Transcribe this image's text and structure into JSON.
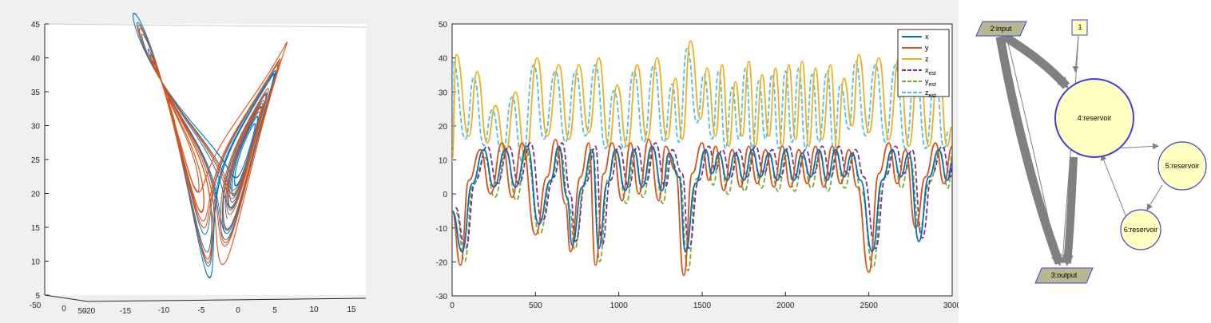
{
  "colors": {
    "x": "#0072BD",
    "y": "#D95319",
    "z": "#EDB120",
    "x_est": "#7E2F8E",
    "y_est": "#77AC30",
    "z_est": "#4DBEEE",
    "axis": "#262626",
    "node_fill": "#ffffc0",
    "node_stroke": "#4040e0",
    "io_fill": "#b8b890",
    "edge": "#808080"
  },
  "chart_data": [
    {
      "type": "line",
      "description_type": "3d-line",
      "series": [
        {
          "name": "",
          "color_key": "x"
        },
        {
          "name": "",
          "color_key": "y"
        }
      ],
      "yticks": [
        5,
        10,
        15,
        20,
        25,
        30,
        35,
        40,
        45
      ],
      "xticks": [
        "-50",
        "0",
        "50",
        "-20",
        "-15",
        "-10",
        "-5",
        "0",
        "5",
        "10",
        "15"
      ],
      "ylim": [
        5,
        45
      ],
      "grid": false
    },
    {
      "type": "line",
      "xlim": [
        0,
        3000
      ],
      "ylim": [
        -30,
        50
      ],
      "xticks": [
        0,
        500,
        1000,
        1500,
        2000,
        2500,
        3000
      ],
      "yticks": [
        -30,
        -20,
        -10,
        0,
        10,
        20,
        30,
        40,
        50
      ],
      "legend_position": "top-right",
      "series": [
        {
          "name": "x",
          "key": "x",
          "style": "solid"
        },
        {
          "name": "y",
          "key": "y",
          "style": "solid"
        },
        {
          "name": "z",
          "key": "z",
          "style": "solid"
        },
        {
          "name": "x",
          "sub": "est",
          "key": "x_est",
          "style": "dashed"
        },
        {
          "name": "y",
          "sub": "est",
          "key": "y_est",
          "style": "dashed"
        },
        {
          "name": "z",
          "sub": "est",
          "key": "z_est",
          "style": "dashed"
        }
      ],
      "z_peaks": [
        [
          0,
          10
        ],
        [
          25,
          41
        ],
        [
          100,
          17
        ],
        [
          150,
          36
        ],
        [
          210,
          15
        ],
        [
          260,
          26
        ],
        [
          320,
          12
        ],
        [
          380,
          30
        ],
        [
          440,
          10
        ],
        [
          510,
          40
        ],
        [
          570,
          17
        ],
        [
          640,
          38
        ],
        [
          700,
          16
        ],
        [
          760,
          38
        ],
        [
          820,
          18
        ],
        [
          880,
          40
        ],
        [
          940,
          14
        ],
        [
          990,
          32
        ],
        [
          1050,
          14
        ],
        [
          1110,
          38
        ],
        [
          1170,
          16
        ],
        [
          1230,
          40
        ],
        [
          1290,
          16
        ],
        [
          1340,
          34
        ],
        [
          1380,
          16
        ],
        [
          1430,
          45
        ],
        [
          1490,
          22
        ],
        [
          1530,
          37
        ],
        [
          1580,
          17
        ],
        [
          1620,
          38
        ],
        [
          1660,
          14
        ],
        [
          1700,
          33
        ],
        [
          1740,
          17
        ],
        [
          1780,
          39
        ],
        [
          1820,
          14
        ],
        [
          1860,
          35
        ],
        [
          1900,
          17
        ],
        [
          1940,
          37
        ],
        [
          1980,
          14
        ],
        [
          2020,
          38
        ],
        [
          2060,
          16
        ],
        [
          2100,
          39
        ],
        [
          2140,
          14
        ],
        [
          2180,
          37
        ],
        [
          2220,
          16
        ],
        [
          2270,
          38
        ],
        [
          2310,
          13
        ],
        [
          2350,
          34
        ],
        [
          2400,
          20
        ],
        [
          2440,
          41
        ],
        [
          2500,
          18
        ],
        [
          2560,
          40
        ],
        [
          2620,
          16
        ],
        [
          2680,
          40
        ],
        [
          2740,
          14
        ],
        [
          2800,
          40
        ],
        [
          2860,
          14
        ],
        [
          2920,
          38
        ],
        [
          2970,
          14
        ],
        [
          3000,
          20
        ]
      ],
      "x_peaks": [
        [
          0,
          -5
        ],
        [
          60,
          -17
        ],
        [
          120,
          3
        ],
        [
          190,
          13
        ],
        [
          250,
          2
        ],
        [
          320,
          13
        ],
        [
          380,
          2
        ],
        [
          450,
          14
        ],
        [
          520,
          -9
        ],
        [
          590,
          4
        ],
        [
          640,
          14
        ],
        [
          690,
          -1
        ],
        [
          720,
          -15
        ],
        [
          780,
          2
        ],
        [
          840,
          13
        ],
        [
          880,
          -16
        ],
        [
          930,
          3
        ],
        [
          980,
          13
        ],
        [
          1040,
          1
        ],
        [
          1090,
          13
        ],
        [
          1140,
          2
        ],
        [
          1200,
          14
        ],
        [
          1260,
          1
        ],
        [
          1300,
          12
        ],
        [
          1360,
          5
        ],
        [
          1400,
          -17
        ],
        [
          1460,
          3
        ],
        [
          1520,
          13
        ],
        [
          1560,
          6
        ],
        [
          1600,
          12
        ],
        [
          1650,
          4
        ],
        [
          1700,
          12
        ],
        [
          1750,
          4
        ],
        [
          1800,
          13
        ],
        [
          1850,
          5
        ],
        [
          1900,
          12
        ],
        [
          1950,
          4
        ],
        [
          2000,
          13
        ],
        [
          2050,
          4
        ],
        [
          2100,
          12
        ],
        [
          2150,
          5
        ],
        [
          2200,
          13
        ],
        [
          2250,
          4
        ],
        [
          2300,
          13
        ],
        [
          2350,
          5
        ],
        [
          2400,
          12
        ],
        [
          2450,
          4
        ],
        [
          2520,
          -17
        ],
        [
          2580,
          4
        ],
        [
          2640,
          13
        ],
        [
          2690,
          5
        ],
        [
          2740,
          12
        ],
        [
          2800,
          -14
        ],
        [
          2860,
          5
        ],
        [
          2920,
          13
        ],
        [
          2970,
          4
        ],
        [
          3000,
          9
        ]
      ],
      "y_peaks": [
        [
          0,
          -5
        ],
        [
          50,
          -21
        ],
        [
          100,
          4
        ],
        [
          170,
          13
        ],
        [
          230,
          0
        ],
        [
          300,
          15
        ],
        [
          360,
          -1
        ],
        [
          420,
          15
        ],
        [
          500,
          -12
        ],
        [
          570,
          5
        ],
        [
          620,
          16
        ],
        [
          680,
          -3
        ],
        [
          710,
          -17
        ],
        [
          770,
          5
        ],
        [
          820,
          15
        ],
        [
          860,
          -21
        ],
        [
          910,
          6
        ],
        [
          960,
          15
        ],
        [
          1020,
          -2
        ],
        [
          1070,
          15
        ],
        [
          1120,
          0
        ],
        [
          1180,
          16
        ],
        [
          1240,
          -2
        ],
        [
          1280,
          14
        ],
        [
          1340,
          7
        ],
        [
          1390,
          -24
        ],
        [
          1440,
          6
        ],
        [
          1500,
          15
        ],
        [
          1540,
          4
        ],
        [
          1580,
          14
        ],
        [
          1630,
          1
        ],
        [
          1680,
          13
        ],
        [
          1730,
          2
        ],
        [
          1780,
          14
        ],
        [
          1830,
          3
        ],
        [
          1880,
          13
        ],
        [
          1930,
          2
        ],
        [
          1980,
          14
        ],
        [
          2030,
          2
        ],
        [
          2080,
          13
        ],
        [
          2130,
          3
        ],
        [
          2180,
          14
        ],
        [
          2230,
          2
        ],
        [
          2280,
          14
        ],
        [
          2330,
          3
        ],
        [
          2380,
          13
        ],
        [
          2430,
          2
        ],
        [
          2500,
          -23
        ],
        [
          2560,
          6
        ],
        [
          2620,
          15
        ],
        [
          2670,
          3
        ],
        [
          2720,
          13
        ],
        [
          2780,
          -10
        ],
        [
          2840,
          5
        ],
        [
          2900,
          15
        ],
        [
          2950,
          3
        ],
        [
          3000,
          14
        ]
      ]
    }
  ],
  "graph": {
    "nodes": [
      {
        "id": "input",
        "label": "2:input",
        "shape": "parallelogram"
      },
      {
        "id": "one",
        "label": "1",
        "shape": "box"
      },
      {
        "id": "r4",
        "label": "4:reservoir",
        "shape": "circle"
      },
      {
        "id": "r5",
        "label": "5:reservoir",
        "shape": "circle"
      },
      {
        "id": "r6",
        "label": "6:reservoir",
        "shape": "circle"
      },
      {
        "id": "output",
        "label": "3:output",
        "shape": "parallelogram"
      }
    ]
  }
}
